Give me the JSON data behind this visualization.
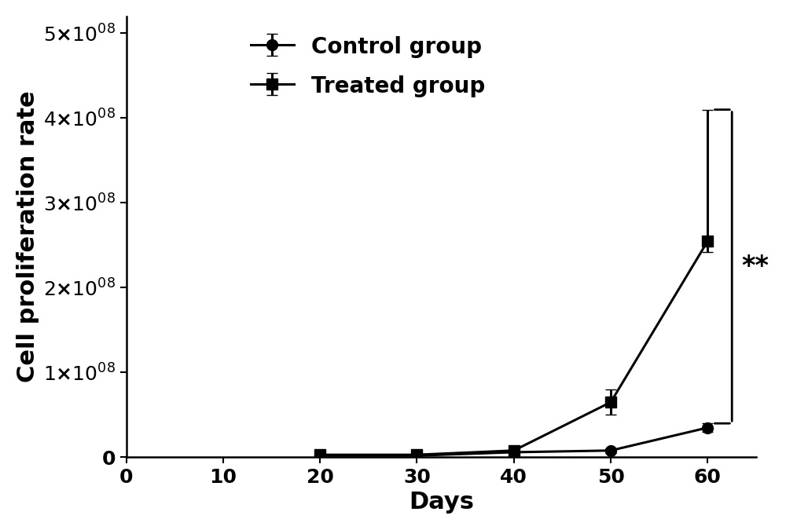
{
  "days": [
    20,
    30,
    40,
    50,
    60
  ],
  "control_values": [
    2000000.0,
    2000000.0,
    6000000.0,
    8000000.0,
    35000000.0
  ],
  "control_errors": [
    1000000.0,
    1000000.0,
    2000000.0,
    3000000.0,
    5000000.0
  ],
  "treated_values": [
    3000000.0,
    3000000.0,
    8000000.0,
    65000000.0,
    255000000.0
  ],
  "treated_errors_upper": [
    1000000.0,
    1000000.0,
    3000000.0,
    15000000.0,
    155000000.0
  ],
  "treated_errors_lower": [
    1000000.0,
    1000000.0,
    3000000.0,
    15000000.0,
    13000000.0
  ],
  "xlim": [
    0,
    65
  ],
  "ylim": [
    0,
    520000000.0
  ],
  "xlabel": "Days",
  "ylabel": "Cell proliferation rate",
  "legend_labels": [
    "Control group",
    "Treated group"
  ],
  "line_color": "#000000",
  "background_color": "#ffffff",
  "significance_text": "**",
  "ytick_values": [
    0,
    100000000.0,
    200000000.0,
    300000000.0,
    400000000.0,
    500000000.0
  ],
  "ytick_labels": [
    "0",
    "1×10^08",
    "2×10^08",
    "3×10^08",
    "4×10^08",
    "5×10^08"
  ],
  "xtick_values": [
    0,
    10,
    20,
    30,
    40,
    50,
    60
  ],
  "label_fontsize": 22,
  "tick_fontsize": 18,
  "legend_fontsize": 20,
  "marker_size": 10,
  "line_width": 2.2,
  "cap_size": 5,
  "bracket_x": 62.5,
  "bracket_y_top": 410000000.0,
  "bracket_y_bot": 40000000.0,
  "sig_fontsize": 24
}
